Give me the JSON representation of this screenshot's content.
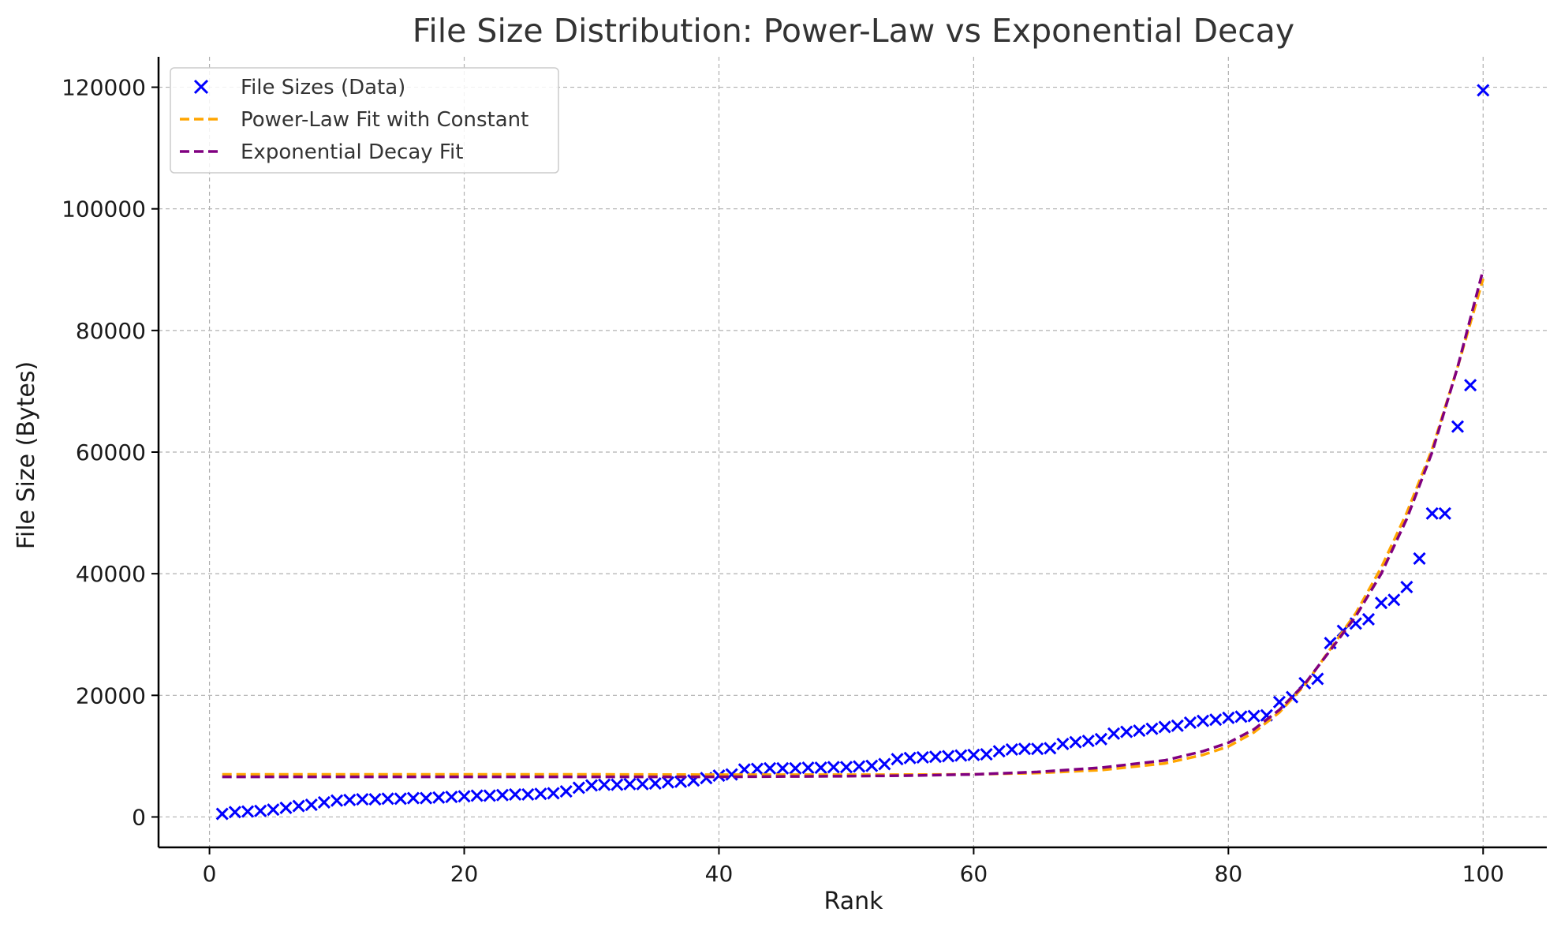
{
  "chart_data": {
    "type": "scatter",
    "title": "File Size Distribution: Power-Law vs Exponential Decay",
    "xlabel": "Rank",
    "ylabel": "File Size (Bytes)",
    "xlim": [
      -4,
      105
    ],
    "ylim": [
      -5000,
      125000
    ],
    "x_ticks": [
      0,
      20,
      40,
      60,
      80,
      100
    ],
    "y_ticks": [
      0,
      20000,
      40000,
      60000,
      80000,
      100000,
      120000
    ],
    "grid": true,
    "legend_position": "top-left",
    "series": [
      {
        "name": "File Sizes (Data)",
        "kind": "scatter",
        "marker": "x",
        "color": "#0000ff",
        "x": [
          1,
          2,
          3,
          4,
          5,
          6,
          7,
          8,
          9,
          10,
          11,
          12,
          13,
          14,
          15,
          16,
          17,
          18,
          19,
          20,
          21,
          22,
          23,
          24,
          25,
          26,
          27,
          28,
          29,
          30,
          31,
          32,
          33,
          34,
          35,
          36,
          37,
          38,
          39,
          40,
          41,
          42,
          43,
          44,
          45,
          46,
          47,
          48,
          49,
          50,
          51,
          52,
          53,
          54,
          55,
          56,
          57,
          58,
          59,
          60,
          61,
          62,
          63,
          64,
          65,
          66,
          67,
          68,
          69,
          70,
          71,
          72,
          73,
          74,
          75,
          76,
          77,
          78,
          79,
          80,
          81,
          82,
          83,
          84,
          85,
          86,
          87,
          88,
          89,
          90,
          91,
          92,
          93,
          94,
          95,
          96,
          97,
          98,
          99,
          100
        ],
        "y": [
          500,
          800,
          900,
          1000,
          1200,
          1500,
          1800,
          2000,
          2400,
          2700,
          2800,
          2900,
          2900,
          3000,
          3000,
          3100,
          3100,
          3200,
          3300,
          3400,
          3500,
          3500,
          3600,
          3700,
          3700,
          3800,
          3900,
          4200,
          4800,
          5200,
          5300,
          5300,
          5400,
          5400,
          5500,
          5700,
          5800,
          6000,
          6400,
          6800,
          7000,
          7800,
          7900,
          8000,
          8000,
          8000,
          8100,
          8100,
          8200,
          8200,
          8300,
          8400,
          8700,
          9500,
          9700,
          9800,
          9900,
          10000,
          10100,
          10200,
          10300,
          10800,
          11100,
          11200,
          11200,
          11300,
          12000,
          12300,
          12500,
          12800,
          13700,
          14000,
          14200,
          14500,
          14800,
          15000,
          15500,
          15800,
          16000,
          16300,
          16500,
          16600,
          16700,
          18900,
          19700,
          22000,
          22700,
          28600,
          30600,
          31800,
          32500,
          35200,
          35700,
          37800,
          42500,
          49900,
          49900,
          64200,
          71000,
          119500
        ]
      },
      {
        "name": "Power-Law Fit with Constant",
        "kind": "line",
        "dash": "dashed",
        "color": "#ffa500",
        "x": [
          1,
          10,
          20,
          30,
          40,
          50,
          55,
          60,
          65,
          70,
          75,
          78,
          80,
          82,
          84,
          86,
          88,
          90,
          92,
          94,
          96,
          98,
          100
        ],
        "y": [
          7000,
          7000,
          7000,
          7000,
          6950,
          6950,
          6960,
          7020,
          7220,
          7720,
          8800,
          10200,
          11600,
          13900,
          17200,
          21700,
          27600,
          33500,
          41000,
          50000,
          60500,
          74000,
          88500
        ]
      },
      {
        "name": "Exponential Decay Fit",
        "kind": "line",
        "dash": "dashed",
        "color": "#800080",
        "x": [
          1,
          10,
          20,
          30,
          40,
          50,
          55,
          60,
          65,
          70,
          75,
          78,
          80,
          82,
          84,
          86,
          88,
          90,
          92,
          94,
          96,
          98,
          100
        ],
        "y": [
          6600,
          6600,
          6600,
          6600,
          6600,
          6700,
          6800,
          7000,
          7400,
          8100,
          9300,
          10800,
          12200,
          14400,
          17600,
          21900,
          27400,
          33000,
          40000,
          49000,
          60000,
          74000,
          90000
        ]
      }
    ]
  }
}
